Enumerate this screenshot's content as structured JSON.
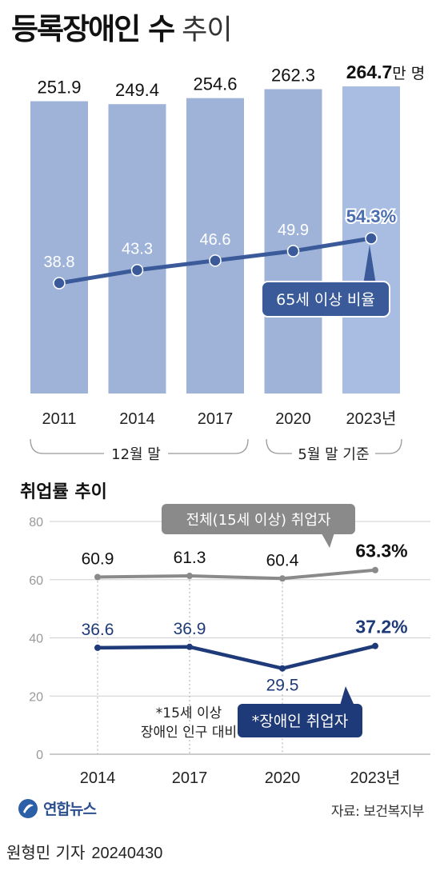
{
  "title": {
    "main": "등록장애인 수",
    "sub": "추이"
  },
  "chart_data": [
    {
      "type": "bar",
      "categories": [
        "2011",
        "2014",
        "2017",
        "2020",
        "2023년"
      ],
      "values": [
        251.9,
        249.4,
        254.6,
        262.3,
        264.7
      ],
      "value_labels": [
        "251.9",
        "249.4",
        "254.6",
        "262.3",
        "264.7"
      ],
      "unit_label": "만 명",
      "bar_color": "#9fb3d9",
      "last_bar_color": "#a9bde3",
      "line_series": {
        "name": "65세 이상 비율",
        "values": [
          38.8,
          43.3,
          46.6,
          49.9,
          54.3
        ],
        "value_labels": [
          "38.8",
          "43.3",
          "46.6",
          "49.9",
          "54.3%"
        ],
        "color": "#3a5a9a"
      },
      "period_notes": [
        {
          "label": "12월 말",
          "categories": [
            "2011",
            "2014",
            "2017"
          ]
        },
        {
          "label": "5월 말 기준",
          "categories": [
            "2020",
            "2023년"
          ]
        }
      ]
    },
    {
      "type": "line",
      "title": "취업률 추이",
      "x": [
        "2014",
        "2017",
        "2020",
        "2023년"
      ],
      "ylim": [
        0,
        80
      ],
      "yticks": [
        "0",
        "20",
        "40",
        "60",
        "80"
      ],
      "grid": true,
      "series": [
        {
          "name": "전체(15세 이상) 취업자",
          "values": [
            60.9,
            61.3,
            60.4,
            63.3
          ],
          "value_labels": [
            "60.9",
            "61.3",
            "60.4",
            "63.3%"
          ],
          "color": "#8a8a8a"
        },
        {
          "name": "*장애인 취업자",
          "values": [
            36.6,
            36.9,
            29.5,
            37.2
          ],
          "value_labels": [
            "36.6",
            "36.9",
            "29.5",
            "37.2%"
          ],
          "color": "#1e3a78"
        }
      ],
      "footnote": [
        "*15세 이상",
        "장애인 인구 대비"
      ]
    }
  ],
  "footer": {
    "logo_text": "연합뉴스",
    "source": "자료: 보건복지부",
    "reporter": "원형민 기자",
    "date": "20240430"
  }
}
